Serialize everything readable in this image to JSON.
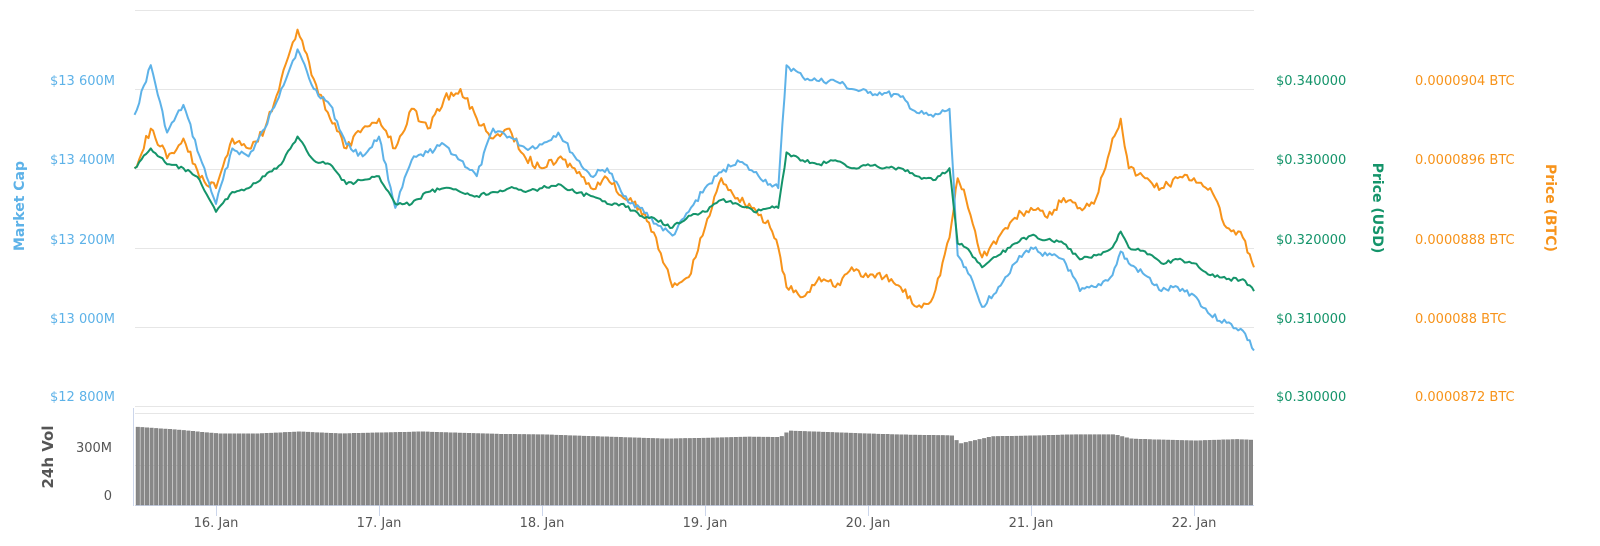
{
  "chart_data": [
    {
      "type": "line",
      "title": "",
      "xlabel": "",
      "x_ticks": [
        "16. Jan",
        "17. Jan",
        "18. Jan",
        "19. Jan",
        "20. Jan",
        "21. Jan",
        "22. Jan"
      ],
      "x_range": [
        "15.5 Jan",
        "22.37 Jan"
      ],
      "grid": true,
      "legend": null,
      "axes": [
        {
          "id": "market_cap",
          "title": "Market Cap",
          "position": "left",
          "color": "#5db2e8",
          "ticks": [
            "$13 600M",
            "$13 400M",
            "$13 200M",
            "$13 000M",
            "$12 800M"
          ],
          "range": [
            12800,
            13800
          ],
          "unit": "M USD"
        },
        {
          "id": "price_usd",
          "title": "Price (USD)",
          "position": "right",
          "color": "#14946a",
          "ticks": [
            "$0.340000",
            "$0.330000",
            "$0.320000",
            "$0.310000",
            "$0.300000"
          ],
          "range": [
            0.3,
            0.35
          ]
        },
        {
          "id": "price_btc",
          "title": "Price (BTC)",
          "position": "right",
          "color": "#f7931a",
          "ticks": [
            "0.0000904 BTC",
            "0.0000896 BTC",
            "0.0000888 BTC",
            "0.000088 BTC",
            "0.0000872 BTC"
          ],
          "range": [
            8.72e-05,
            9.12e-05
          ]
        }
      ],
      "x": [
        15.5,
        15.6,
        15.7,
        15.8,
        15.9,
        16.0,
        16.1,
        16.2,
        16.3,
        16.4,
        16.5,
        16.6,
        16.7,
        16.8,
        16.9,
        17.0,
        17.1,
        17.2,
        17.3,
        17.4,
        17.5,
        17.6,
        17.7,
        17.8,
        17.9,
        18.0,
        18.1,
        18.2,
        18.3,
        18.4,
        18.5,
        18.6,
        18.7,
        18.8,
        18.9,
        19.0,
        19.1,
        19.2,
        19.3,
        19.4,
        19.45,
        19.5,
        19.6,
        19.7,
        19.8,
        19.9,
        20.0,
        20.1,
        20.2,
        20.3,
        20.4,
        20.5,
        20.55,
        20.6,
        20.7,
        20.8,
        20.9,
        21.0,
        21.1,
        21.2,
        21.3,
        21.4,
        21.5,
        21.55,
        21.6,
        21.7,
        21.8,
        21.9,
        22.0,
        22.1,
        22.2,
        22.3,
        22.37
      ],
      "series": [
        {
          "name": "Market Cap",
          "axis": "market_cap",
          "color": "#5db2e8",
          "values": [
            13535,
            13660,
            13490,
            13560,
            13430,
            13310,
            13450,
            13430,
            13500,
            13600,
            13700,
            13600,
            13560,
            13460,
            13430,
            13480,
            13300,
            13420,
            13440,
            13460,
            13420,
            13380,
            13500,
            13480,
            13450,
            13460,
            13490,
            13430,
            13380,
            13400,
            13330,
            13300,
            13260,
            13230,
            13290,
            13350,
            13390,
            13420,
            13390,
            13360,
            13350,
            13660,
            13630,
            13620,
            13620,
            13600,
            13590,
            13590,
            13580,
            13540,
            13530,
            13550,
            13180,
            13150,
            13050,
            13100,
            13160,
            13200,
            13180,
            13170,
            13090,
            13100,
            13130,
            13190,
            13160,
            13130,
            13090,
            13100,
            13080,
            13030,
            13010,
            12990,
            12940
          ]
        },
        {
          "name": "Price (USD)",
          "axis": "price_usd",
          "color": "#14946a",
          "values": [
            0.33,
            0.3325,
            0.3305,
            0.33,
            0.3285,
            0.3245,
            0.327,
            0.3275,
            0.329,
            0.3305,
            0.334,
            0.331,
            0.3305,
            0.328,
            0.3285,
            0.329,
            0.3255,
            0.3255,
            0.327,
            0.3275,
            0.327,
            0.3265,
            0.327,
            0.3275,
            0.327,
            0.3275,
            0.328,
            0.327,
            0.3265,
            0.3255,
            0.3255,
            0.324,
            0.3235,
            0.3225,
            0.324,
            0.3245,
            0.326,
            0.3255,
            0.3245,
            0.325,
            0.325,
            0.332,
            0.331,
            0.3305,
            0.331,
            0.33,
            0.3305,
            0.33,
            0.33,
            0.329,
            0.3285,
            0.33,
            0.3205,
            0.32,
            0.3175,
            0.319,
            0.3205,
            0.3215,
            0.321,
            0.3205,
            0.3185,
            0.319,
            0.32,
            0.322,
            0.32,
            0.3195,
            0.318,
            0.3185,
            0.318,
            0.3165,
            0.316,
            0.316,
            0.3145
          ]
        },
        {
          "name": "Price (BTC)",
          "axis": "price_btc",
          "color": "#f7931a",
          "values": [
            8.96e-05,
            9e-05,
            8.97e-05,
            8.99e-05,
            8.95e-05,
            8.94e-05,
            8.99e-05,
            8.98e-05,
            9e-05,
            9.05e-05,
            9.1e-05,
            9.05e-05,
            9.01e-05,
            8.98e-05,
            9e-05,
            9.01e-05,
            8.98e-05,
            9.02e-05,
            9e-05,
            9.03e-05,
            9.04e-05,
            9.01e-05,
            8.99e-05,
            9e-05,
            8.97e-05,
            8.96e-05,
            8.97e-05,
            8.96e-05,
            8.94e-05,
            8.95e-05,
            8.93e-05,
            8.92e-05,
            8.89e-05,
            8.84e-05,
            8.85e-05,
            8.9e-05,
            8.95e-05,
            8.93e-05,
            8.92e-05,
            8.9e-05,
            8.88e-05,
            8.84e-05,
            8.83e-05,
            8.85e-05,
            8.84e-05,
            8.86e-05,
            8.85e-05,
            8.85e-05,
            8.84e-05,
            8.82e-05,
            8.83e-05,
            8.89e-05,
            8.95e-05,
            8.93e-05,
            8.87e-05,
            8.89e-05,
            8.91e-05,
            8.92e-05,
            8.91e-05,
            8.93e-05,
            8.92e-05,
            8.93e-05,
            8.99e-05,
            9.01e-05,
            8.96e-05,
            8.95e-05,
            8.94e-05,
            8.95e-05,
            8.95e-05,
            8.94e-05,
            8.9e-05,
            8.89e-05,
            8.86e-05
          ]
        }
      ]
    },
    {
      "type": "bar",
      "title": "",
      "ylabel": "24h Vol",
      "yticks": [
        "300M",
        "0"
      ],
      "ylim": [
        0,
        500
      ],
      "color": "#888888",
      "x": [
        15.5,
        15.75,
        16.0,
        16.25,
        16.5,
        16.75,
        17.0,
        17.25,
        17.5,
        17.75,
        18.0,
        18.25,
        18.5,
        18.75,
        19.0,
        19.25,
        19.45,
        19.5,
        19.75,
        20.0,
        20.25,
        20.5,
        20.55,
        20.75,
        21.0,
        21.25,
        21.5,
        21.6,
        21.75,
        22.0,
        22.25,
        22.37
      ],
      "values": [
        410,
        395,
        375,
        375,
        385,
        375,
        380,
        385,
        378,
        372,
        370,
        362,
        355,
        348,
        352,
        358,
        356,
        390,
        382,
        374,
        368,
        365,
        322,
        360,
        364,
        370,
        370,
        348,
        343,
        338,
        345,
        340
      ]
    }
  ],
  "labels": {
    "market_cap_title": "Market Cap",
    "price_usd_title": "Price (USD)",
    "price_btc_title": "Price (BTC)",
    "volume_title": "24h Vol",
    "mc_ticks": [
      "$13 600M",
      "$13 400M",
      "$13 200M",
      "$13 000M",
      "$12 800M"
    ],
    "usd_ticks": [
      "$0.340000",
      "$0.330000",
      "$0.320000",
      "$0.310000",
      "$0.300000"
    ],
    "btc_ticks": [
      "0.0000904 BTC",
      "0.0000896 BTC",
      "0.0000888 BTC",
      "0.000088 BTC",
      "0.0000872 BTC"
    ],
    "vol_ticks": [
      "300M",
      "0"
    ],
    "x_ticks": [
      "16. Jan",
      "17. Jan",
      "18. Jan",
      "19. Jan",
      "20. Jan",
      "21. Jan",
      "22. Jan"
    ]
  }
}
